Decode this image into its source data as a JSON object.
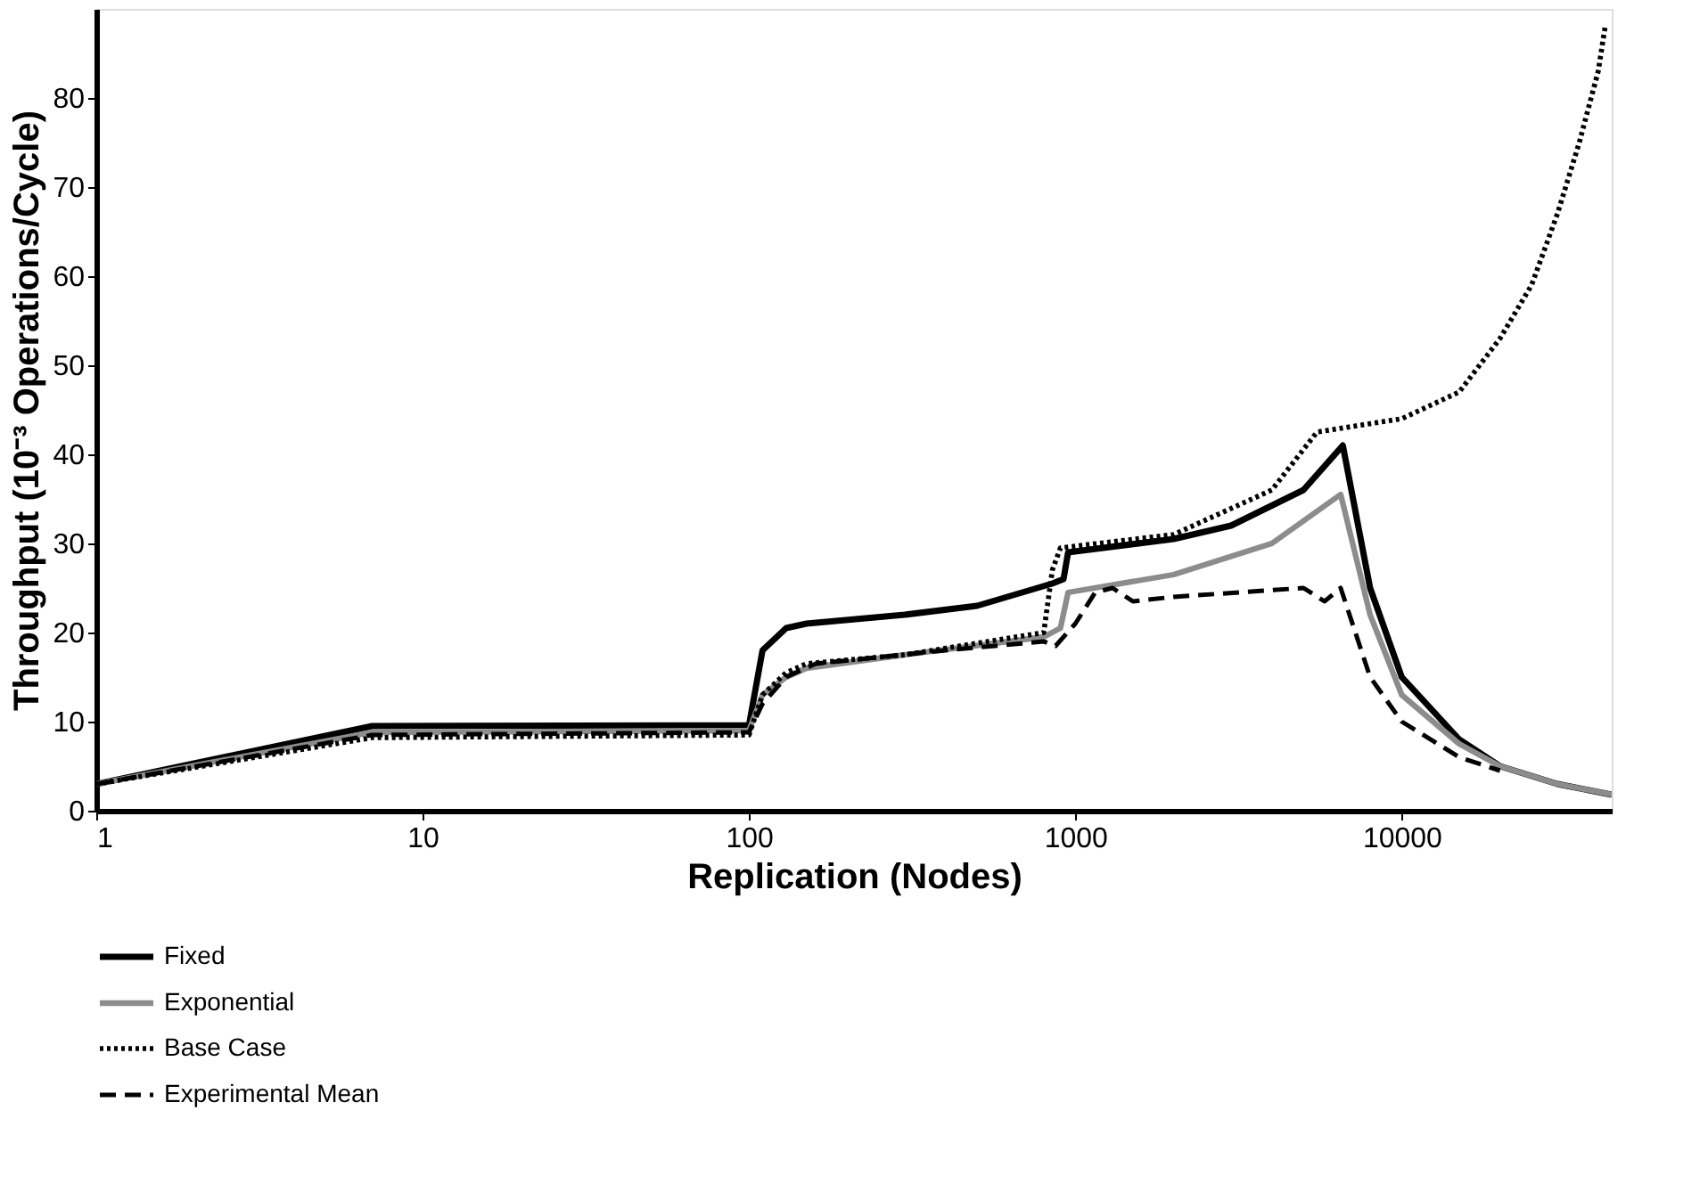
{
  "chart_data": {
    "type": "line",
    "xlabel": "Replication (Nodes)",
    "ylabel": "Throughput (10⁻³ Operations/Cycle)",
    "log": "x",
    "xlim": [
      1,
      44000
    ],
    "xticks": [
      1,
      10,
      100,
      1000,
      10000
    ],
    "ylim": [
      0,
      90
    ],
    "yticks": [
      0,
      10,
      20,
      30,
      40,
      50,
      60,
      70,
      80
    ],
    "grid": false,
    "legend": "bottom",
    "marker": "none",
    "series": [
      {
        "name": "Fixed",
        "color": "#000000",
        "line_style": "solid",
        "x": [
          1,
          7,
          100,
          110,
          130,
          150,
          300,
          500,
          850,
          920,
          950,
          2000,
          3000,
          5000,
          6600,
          8000,
          10000,
          15000,
          20000,
          30000,
          44000
        ],
        "values": [
          3,
          9.5,
          9.6,
          18,
          20.5,
          21,
          22,
          23,
          25.5,
          26,
          29,
          30.5,
          32,
          36,
          41,
          25,
          15,
          8,
          5,
          3,
          1.8
        ]
      },
      {
        "name": "Exponential",
        "color": "#8c8c8c",
        "line_style": "solid",
        "x": [
          1,
          7,
          100,
          110,
          130,
          150,
          300,
          800,
          900,
          950,
          2000,
          4000,
          6500,
          8000,
          10000,
          15000,
          20000,
          30000,
          44000
        ],
        "values": [
          3,
          8.8,
          9,
          13,
          15,
          16,
          17.5,
          19.5,
          20.5,
          24.5,
          26.5,
          30,
          35.5,
          22,
          13,
          7.5,
          5,
          3,
          1.8
        ]
      },
      {
        "name": "Base Case",
        "color": "#000000",
        "line_style": "dotted",
        "x": [
          1,
          7,
          100,
          110,
          130,
          150,
          300,
          800,
          850,
          900,
          2000,
          4000,
          5500,
          10000,
          15000,
          20000,
          25000,
          30000,
          35000,
          40000,
          42000
        ],
        "values": [
          3,
          8.2,
          8.5,
          13,
          15.5,
          16.5,
          17.5,
          20,
          27,
          29.5,
          31,
          36,
          42.5,
          44,
          47,
          53,
          59,
          67,
          75,
          83,
          88
        ]
      },
      {
        "name": "Experimental Mean",
        "color": "#000000",
        "line_style": "dashed",
        "x": [
          1,
          7,
          100,
          110,
          130,
          160,
          400,
          800,
          870,
          1000,
          1150,
          1300,
          1500,
          2000,
          5000,
          5800,
          6500,
          8000,
          10000,
          15000,
          20000
        ],
        "values": [
          3,
          8.5,
          8.8,
          12,
          15,
          16.5,
          18,
          19,
          18.5,
          21,
          24.5,
          25,
          23.5,
          24,
          25,
          23.5,
          25,
          15,
          10,
          6,
          4.5
        ]
      }
    ]
  }
}
